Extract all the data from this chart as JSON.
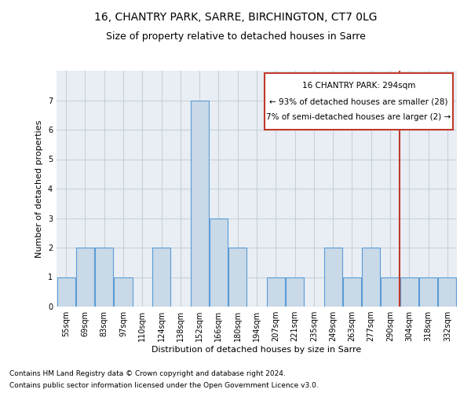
{
  "title": "16, CHANTRY PARK, SARRE, BIRCHINGTON, CT7 0LG",
  "subtitle": "Size of property relative to detached houses in Sarre",
  "xlabel": "Distribution of detached houses by size in Sarre",
  "ylabel": "Number of detached properties",
  "footer1": "Contains HM Land Registry data © Crown copyright and database right 2024.",
  "footer2": "Contains public sector information licensed under the Open Government Licence v3.0.",
  "categories": [
    "55sqm",
    "69sqm",
    "83sqm",
    "97sqm",
    "110sqm",
    "124sqm",
    "138sqm",
    "152sqm",
    "166sqm",
    "180sqm",
    "194sqm",
    "207sqm",
    "221sqm",
    "235sqm",
    "249sqm",
    "263sqm",
    "277sqm",
    "290sqm",
    "304sqm",
    "318sqm",
    "332sqm"
  ],
  "values": [
    1,
    2,
    2,
    1,
    0,
    2,
    0,
    7,
    3,
    2,
    0,
    1,
    1,
    0,
    2,
    1,
    2,
    1,
    1,
    1,
    1
  ],
  "bar_color": "#c9d9e8",
  "bar_edge_color": "#5b9bd5",
  "vline_x": 17.5,
  "vline_color": "#c0392b",
  "annotation_line1": "16 CHANTRY PARK: 294sqm",
  "annotation_line2": "← 93% of detached houses are smaller (28)",
  "annotation_line3": "7% of semi-detached houses are larger (2) →",
  "annotation_fontsize": 7.5,
  "ylim": [
    0,
    8
  ],
  "yticks": [
    0,
    1,
    2,
    3,
    4,
    5,
    6,
    7
  ],
  "title_fontsize": 10,
  "subtitle_fontsize": 9,
  "xlabel_fontsize": 8,
  "ylabel_fontsize": 8,
  "tick_fontsize": 7,
  "footer_fontsize": 6.5,
  "grid_color": "#c8d0d8",
  "background_color": "#e8eef4"
}
